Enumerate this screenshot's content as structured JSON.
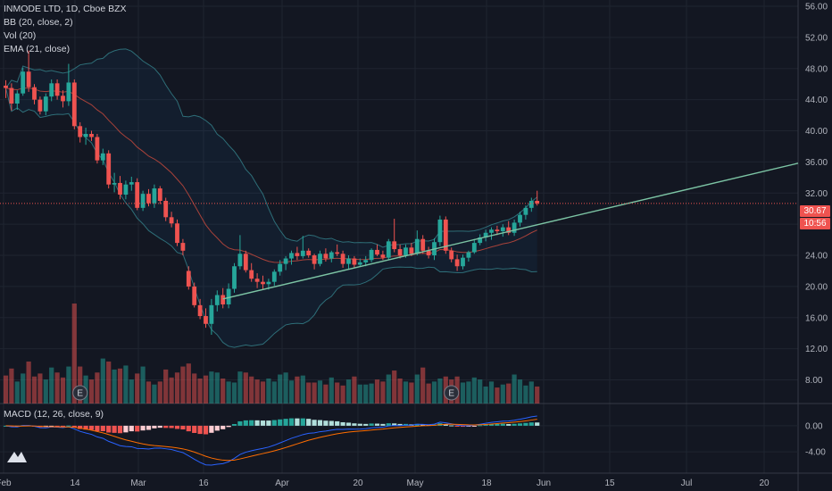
{
  "legend": {
    "symbol": "INMODE LTD, 1D, Cboe BZX",
    "bb": "BB (20, close, 2)",
    "vol": "Vol (20)",
    "ema": "EMA (21, close)",
    "macd": "MACD (12, 26, close, 9)"
  },
  "colors": {
    "up": "#26a69a",
    "down": "#ef5350",
    "background": "#131722",
    "grid": "#1f2430",
    "bb": "#2e6e78",
    "ema": "#a8423a",
    "trendline": "#7cc4a4"
  },
  "price_tag": {
    "last": "30.67",
    "countdown": "10:56"
  },
  "chart_data": {
    "type": "candlestick",
    "price_axis": {
      "ylim": [
        6,
        56
      ],
      "ticks": [
        "56.00",
        "52.00",
        "48.00",
        "44.00",
        "40.00",
        "36.00",
        "32.00",
        "28.00",
        "24.00",
        "20.00",
        "16.00",
        "12.00",
        "8.00"
      ]
    },
    "macd_axis": {
      "ticks": [
        "0.00",
        "-4.00"
      ]
    },
    "time_axis": {
      "ticks": [
        "Feb",
        "14",
        "Mar",
        "16",
        "Apr",
        "20",
        "May",
        "18",
        "Jun",
        "15",
        "Jul",
        "20"
      ]
    },
    "candles": [
      [
        45.8,
        46.5,
        44.2,
        45.5
      ],
      [
        45.5,
        46.1,
        42.6,
        43.5
      ],
      [
        43.5,
        45.2,
        42.7,
        44.8
      ],
      [
        44.8,
        48.1,
        44.5,
        47.6
      ],
      [
        47.6,
        50.3,
        45.0,
        45.6
      ],
      [
        45.6,
        46.0,
        43.4,
        44.0
      ],
      [
        44.0,
        44.4,
        42.1,
        42.5
      ],
      [
        42.5,
        44.8,
        42.0,
        44.4
      ],
      [
        44.4,
        46.6,
        43.8,
        46.1
      ],
      [
        46.1,
        46.6,
        44.0,
        44.5
      ],
      [
        44.5,
        45.2,
        43.0,
        43.8
      ],
      [
        43.8,
        48.6,
        43.2,
        46.2
      ],
      [
        46.2,
        46.6,
        40.2,
        40.6
      ],
      [
        40.6,
        41.1,
        38.5,
        39.2
      ],
      [
        39.2,
        40.4,
        38.2,
        39.6
      ],
      [
        39.6,
        40.0,
        38.7,
        39.2
      ],
      [
        39.2,
        39.6,
        35.8,
        36.2
      ],
      [
        36.2,
        37.7,
        35.6,
        37.1
      ],
      [
        37.1,
        37.5,
        32.6,
        33.1
      ],
      [
        33.1,
        34.6,
        32.1,
        33.3
      ],
      [
        33.3,
        34.2,
        31.2,
        31.8
      ],
      [
        31.8,
        33.6,
        31.2,
        33.1
      ],
      [
        33.1,
        34.1,
        32.3,
        33.4
      ],
      [
        33.4,
        33.9,
        29.8,
        30.1
      ],
      [
        30.1,
        32.3,
        29.7,
        31.9
      ],
      [
        31.9,
        32.5,
        30.3,
        30.7
      ],
      [
        30.7,
        33.1,
        30.1,
        32.6
      ],
      [
        32.6,
        32.9,
        30.6,
        31.0
      ],
      [
        31.0,
        31.4,
        28.4,
        28.9
      ],
      [
        28.9,
        29.6,
        27.6,
        28.1
      ],
      [
        28.1,
        28.6,
        25.2,
        25.6
      ],
      [
        25.6,
        26.1,
        24.0,
        24.6
      ],
      [
        22.0,
        22.6,
        19.6,
        20.0
      ],
      [
        20.0,
        20.5,
        17.3,
        17.6
      ],
      [
        17.6,
        18.4,
        15.8,
        16.2
      ],
      [
        16.2,
        17.2,
        14.7,
        15.2
      ],
      [
        15.2,
        18.4,
        13.8,
        17.6
      ],
      [
        17.6,
        19.5,
        16.8,
        18.9
      ],
      [
        18.9,
        19.8,
        17.2,
        17.7
      ],
      [
        17.7,
        20.4,
        17.2,
        19.7
      ],
      [
        19.7,
        23.0,
        19.2,
        22.6
      ],
      [
        22.6,
        26.6,
        22.2,
        24.2
      ],
      [
        24.2,
        24.6,
        21.8,
        22.1
      ],
      [
        22.1,
        23.0,
        20.6,
        21.0
      ],
      [
        21.0,
        21.7,
        19.8,
        20.6
      ],
      [
        20.6,
        21.4,
        19.6,
        20.3
      ],
      [
        20.3,
        21.0,
        19.6,
        20.6
      ],
      [
        20.6,
        22.2,
        20.1,
        21.9
      ],
      [
        21.9,
        23.4,
        21.4,
        22.9
      ],
      [
        22.9,
        23.9,
        22.1,
        23.6
      ],
      [
        23.6,
        24.6,
        22.8,
        24.3
      ],
      [
        24.3,
        25.1,
        23.4,
        23.9
      ],
      [
        23.9,
        26.5,
        23.6,
        24.6
      ],
      [
        24.6,
        24.9,
        23.7,
        24.0
      ],
      [
        24.0,
        24.2,
        22.2,
        22.9
      ],
      [
        22.9,
        24.6,
        22.6,
        24.2
      ],
      [
        24.2,
        24.9,
        23.2,
        23.6
      ],
      [
        23.6,
        24.6,
        23.1,
        24.4
      ],
      [
        24.4,
        25.4,
        23.9,
        24.2
      ],
      [
        24.2,
        24.6,
        22.4,
        22.9
      ],
      [
        22.9,
        24.0,
        22.2,
        23.6
      ],
      [
        23.6,
        23.9,
        22.4,
        22.8
      ],
      [
        22.8,
        23.6,
        22.6,
        23.1
      ],
      [
        23.1,
        23.9,
        22.6,
        23.4
      ],
      [
        23.4,
        24.9,
        23.1,
        24.7
      ],
      [
        24.7,
        25.4,
        23.9,
        24.1
      ],
      [
        24.1,
        24.6,
        23.4,
        23.7
      ],
      [
        23.7,
        26.1,
        23.4,
        25.8
      ],
      [
        25.8,
        28.7,
        24.4,
        24.8
      ],
      [
        24.8,
        25.4,
        23.6,
        24.0
      ],
      [
        24.0,
        25.4,
        23.7,
        25.0
      ],
      [
        25.0,
        25.6,
        23.9,
        24.2
      ],
      [
        24.2,
        27.2,
        24.0,
        26.1
      ],
      [
        26.1,
        26.6,
        24.2,
        24.6
      ],
      [
        24.6,
        25.1,
        23.6,
        24.0
      ],
      [
        24.0,
        26.2,
        23.4,
        25.7
      ],
      [
        25.7,
        29.1,
        25.2,
        28.6
      ],
      [
        28.6,
        29.0,
        24.2,
        24.6
      ],
      [
        24.6,
        25.0,
        23.1,
        23.5
      ],
      [
        23.5,
        24.1,
        22.0,
        22.6
      ],
      [
        22.6,
        24.1,
        22.2,
        23.7
      ],
      [
        23.7,
        24.6,
        23.2,
        24.4
      ],
      [
        24.4,
        26.1,
        24.2,
        25.6
      ],
      [
        25.6,
        26.7,
        25.3,
        26.3
      ],
      [
        26.3,
        27.3,
        25.8,
        26.9
      ],
      [
        26.9,
        27.6,
        26.0,
        27.3
      ],
      [
        27.3,
        27.8,
        26.6,
        27.1
      ],
      [
        27.1,
        28.0,
        26.4,
        27.6
      ],
      [
        27.6,
        28.4,
        26.6,
        26.9
      ],
      [
        26.9,
        28.6,
        26.5,
        28.2
      ],
      [
        28.2,
        29.6,
        27.7,
        29.2
      ],
      [
        29.2,
        30.4,
        28.6,
        30.1
      ],
      [
        30.1,
        31.4,
        29.6,
        31.0
      ],
      [
        31.0,
        32.3,
        30.4,
        30.67
      ]
    ],
    "volume": [
      0.28,
      0.35,
      0.22,
      0.3,
      0.42,
      0.27,
      0.3,
      0.24,
      0.36,
      0.31,
      0.26,
      0.37,
      1.0,
      0.37,
      0.28,
      0.24,
      0.31,
      0.45,
      0.42,
      0.34,
      0.35,
      0.38,
      0.24,
      0.3,
      0.37,
      0.22,
      0.19,
      0.22,
      0.34,
      0.26,
      0.31,
      0.37,
      0.4,
      0.3,
      0.25,
      0.28,
      0.32,
      0.31,
      0.25,
      0.22,
      0.21,
      0.32,
      0.31,
      0.27,
      0.24,
      0.22,
      0.25,
      0.22,
      0.29,
      0.31,
      0.23,
      0.27,
      0.28,
      0.21,
      0.21,
      0.23,
      0.19,
      0.26,
      0.21,
      0.18,
      0.24,
      0.27,
      0.19,
      0.19,
      0.2,
      0.24,
      0.22,
      0.29,
      0.33,
      0.25,
      0.22,
      0.21,
      0.29,
      0.36,
      0.2,
      0.22,
      0.25,
      0.27,
      0.24,
      0.27,
      0.21,
      0.22,
      0.26,
      0.24,
      0.17,
      0.22,
      0.16,
      0.19,
      0.2,
      0.29,
      0.24,
      0.18,
      0.22,
      0.17
    ],
    "earnings_markers": [
      13,
      78
    ],
    "trendline": {
      "from": [
        38,
        18.4
      ],
      "to": [
        120,
        32.6
      ]
    }
  }
}
